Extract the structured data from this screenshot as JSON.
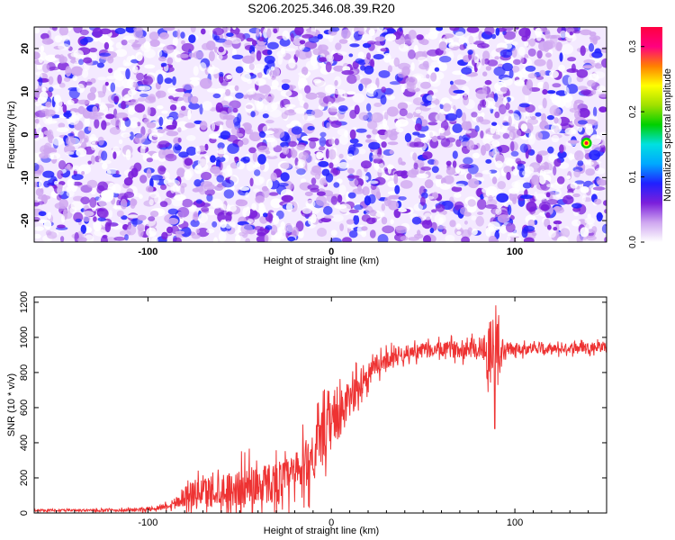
{
  "title": "S206.2025.346.08.39.R20",
  "chart_data": [
    {
      "type": "heatmap",
      "title": "S206.2025.346.08.39.R20",
      "xlabel": "Height of straight line (km)",
      "ylabel": "Frequency (Hz)",
      "xlim": [
        -162,
        150
      ],
      "ylim": [
        -25,
        25
      ],
      "xticks": [
        -100,
        0,
        100
      ],
      "yticks": [
        -20,
        -10,
        0,
        10,
        20
      ],
      "colorbar": {
        "label": "Normalized spectral amplitude",
        "range": [
          0.0,
          0.33
        ],
        "ticks": [
          0.0,
          0.1,
          0.2,
          0.3
        ],
        "colors": [
          "#ffffff",
          "#cfa7f0",
          "#7b1fdb",
          "#2020ff",
          "#00a8ff",
          "#00e0e0",
          "#00d000",
          "#a0e000",
          "#ffff00",
          "#ff8000",
          "#ff0080",
          "#ff0040"
        ]
      },
      "background_amplitude_range": [
        0.0,
        0.1
      ],
      "peaks": [
        {
          "x": 139,
          "y": -2,
          "value": 0.33
        }
      ]
    },
    {
      "type": "line",
      "xlabel": "Height of straight line (km)",
      "ylabel": "SNR (10 * v/v)",
      "xlim": [
        -162,
        150
      ],
      "ylim": [
        0,
        1230
      ],
      "xticks": [
        -100,
        0,
        100
      ],
      "yticks": [
        0,
        200,
        400,
        600,
        800,
        1000,
        1200
      ],
      "series": [
        {
          "name": "SNR",
          "color": "#ee3333",
          "x": [
            -162,
            -140,
            -120,
            -100,
            -90,
            -85,
            -80,
            -75,
            -70,
            -65,
            -60,
            -55,
            -50,
            -45,
            -40,
            -35,
            -30,
            -25,
            -20,
            -15,
            -10,
            -5,
            0,
            5,
            10,
            15,
            20,
            25,
            30,
            35,
            40,
            45,
            50,
            60,
            70,
            80,
            85,
            88,
            90,
            92,
            95,
            100,
            110,
            120,
            130,
            140,
            150
          ],
          "baseline": [
            15,
            15,
            15,
            20,
            40,
            60,
            100,
            110,
            120,
            130,
            140,
            130,
            140,
            150,
            160,
            170,
            180,
            190,
            210,
            260,
            340,
            420,
            500,
            560,
            640,
            720,
            790,
            840,
            870,
            900,
            910,
            920,
            925,
            930,
            935,
            940,
            940,
            940,
            940,
            935,
            930,
            935,
            940,
            930,
            940,
            945,
            950
          ],
          "noise": [
            8,
            8,
            10,
            15,
            25,
            50,
            90,
            110,
            120,
            130,
            140,
            150,
            160,
            170,
            170,
            170,
            170,
            170,
            190,
            200,
            230,
            220,
            200,
            190,
            170,
            110,
            100,
            80,
            70,
            70,
            60,
            60,
            60,
            60,
            70,
            80,
            180,
            330,
            260,
            120,
            60,
            50,
            40,
            40,
            40,
            40,
            40
          ],
          "max_value": 1225,
          "min_dip": {
            "x": 89,
            "value": 480
          }
        }
      ]
    }
  ]
}
